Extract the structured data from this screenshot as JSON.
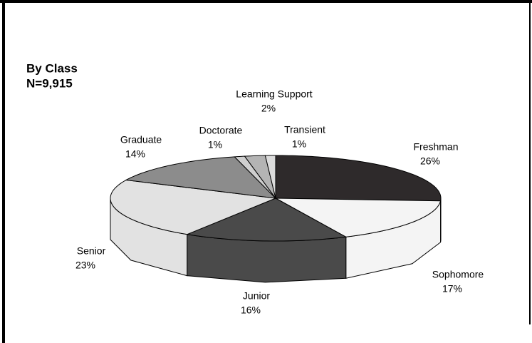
{
  "chart_data": {
    "type": "pie3d",
    "title": "By Class",
    "subtitle": "N=9,915",
    "categories": [
      "Freshman",
      "Sophomore",
      "Junior",
      "Senior",
      "Graduate",
      "Doctorate",
      "Learning Support",
      "Transient"
    ],
    "values": [
      26,
      17,
      16,
      23,
      14,
      1,
      2,
      1
    ],
    "value_labels": [
      "26%",
      "17%",
      "16%",
      "23%",
      "14%",
      "1%",
      "2%",
      "1%"
    ],
    "colors": [
      "#2e2a2b",
      "#f4f4f4",
      "#4a4a4a",
      "#e2e2e2",
      "#8c8c8c",
      "#cfcfcf",
      "#b4b4b4",
      "#dcdcdc"
    ]
  }
}
